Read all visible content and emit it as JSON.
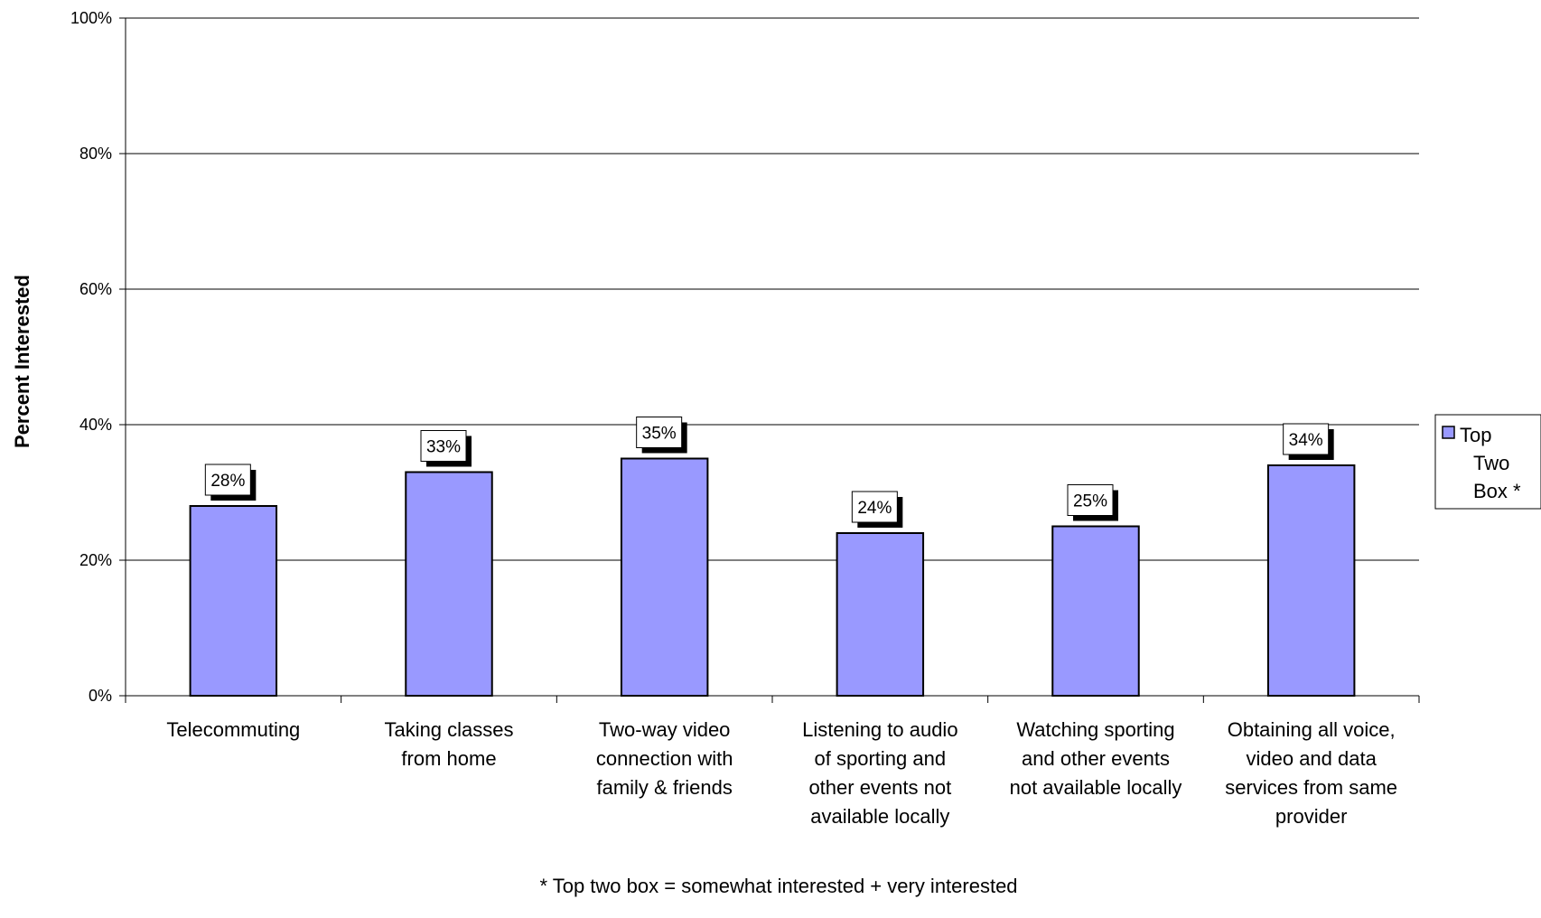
{
  "chart_data": {
    "type": "bar",
    "title": "",
    "xlabel": "",
    "ylabel": "Percent Interested",
    "ylim": [
      0,
      100
    ],
    "yticks": [
      0,
      20,
      40,
      60,
      80,
      100
    ],
    "ytick_labels": [
      "0%",
      "20%",
      "40%",
      "60%",
      "80%",
      "100%"
    ],
    "grid": true,
    "categories": [
      [
        "Telecommuting"
      ],
      [
        "Taking classes",
        "from home"
      ],
      [
        "Two-way video",
        "connection with",
        "family & friends"
      ],
      [
        "Listening to audio",
        "of sporting and",
        "other events not",
        "available locally"
      ],
      [
        "Watching sporting",
        "and other events",
        "not available locally"
      ],
      [
        "Obtaining all voice,",
        "video and data",
        "services from same",
        "provider"
      ]
    ],
    "series": [
      {
        "name": "Top Two Box *",
        "values": [
          28,
          33,
          35,
          24,
          25,
          34
        ],
        "data_labels": [
          "28%",
          "33%",
          "35%",
          "24%",
          "25%",
          "34%"
        ],
        "color": "#9999ff"
      }
    ],
    "legend": {
      "position": "right",
      "lines": [
        "Top",
        "Two",
        "Box *"
      ]
    },
    "footnote": "* Top two box = somewhat interested + very interested"
  }
}
